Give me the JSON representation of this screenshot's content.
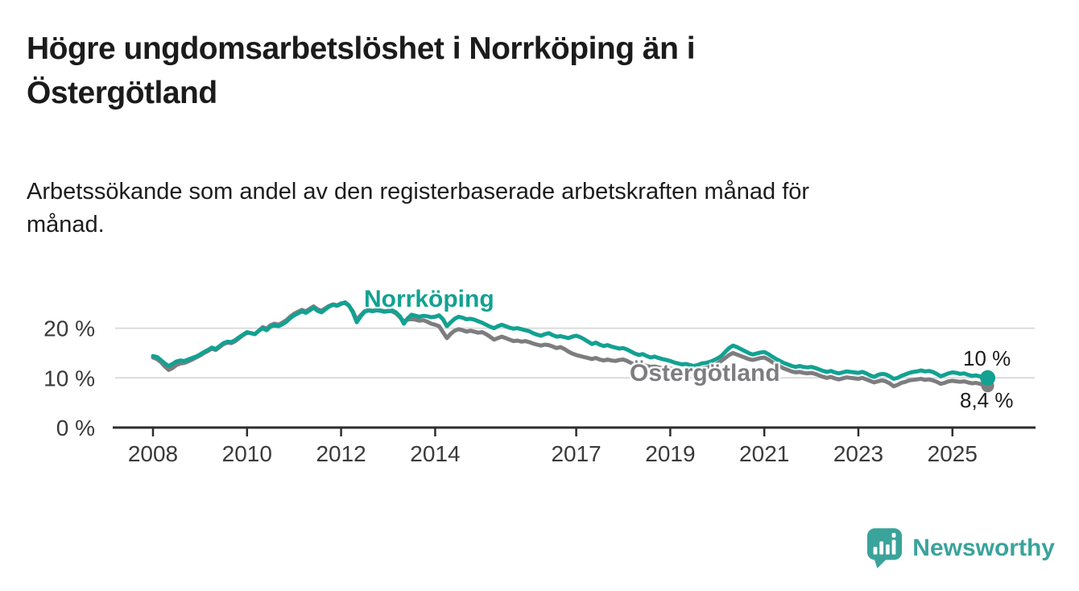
{
  "chart_data": {
    "type": "line",
    "title": "Högre ungdomsarbetslöshet i Norrköping än i Östergötland",
    "title_lines": [
      "Högre ungdomsarbetslöshet i Norrköping än i",
      "Östergötland"
    ],
    "subtitle": "Arbetssökande som andel av den registerbaserade arbetskraften månad för månad.",
    "subtitle_lines": [
      "Arbetssökande som andel av den registerbaserade arbetskraften månad för",
      "månad."
    ],
    "x_start_year": 2008,
    "points_per_year": 12,
    "x_tick_years": [
      2008,
      2010,
      2012,
      2014,
      2017,
      2019,
      2021,
      2023,
      2025
    ],
    "y_ticks": [
      0,
      10,
      20
    ],
    "y_tick_suffix": " %",
    "ylim": [
      0,
      26
    ],
    "grid": "horizontal",
    "legend_position": "inline-labels",
    "series": [
      {
        "name": "Norrköping",
        "slug": "norrkoping",
        "color": "#12a192",
        "end_label": "10 %",
        "end_value": 10.0,
        "values": [
          14.4,
          14.2,
          13.6,
          12.9,
          12.4,
          12.8,
          13.3,
          13.5,
          13.4,
          13.7,
          14.0,
          14.3,
          14.7,
          15.2,
          15.6,
          16.1,
          15.8,
          16.4,
          17.0,
          17.3,
          17.2,
          17.6,
          18.2,
          18.7,
          19.2,
          19.0,
          18.8,
          19.5,
          20.0,
          19.6,
          20.3,
          20.6,
          20.4,
          20.8,
          21.3,
          22.0,
          22.6,
          23.0,
          23.4,
          23.1,
          23.6,
          24.1,
          23.5,
          23.2,
          23.8,
          24.4,
          24.7,
          24.5,
          24.9,
          25.2,
          24.6,
          23.2,
          21.2,
          22.4,
          23.3,
          23.6,
          23.4,
          23.6,
          23.5,
          23.3,
          23.4,
          23.6,
          23.2,
          22.4,
          20.9,
          22.0,
          22.7,
          22.5,
          22.3,
          22.5,
          22.4,
          22.2,
          22.3,
          22.6,
          21.8,
          20.4,
          21.2,
          21.9,
          22.3,
          22.1,
          21.8,
          21.9,
          21.7,
          21.4,
          21.1,
          20.7,
          20.3,
          20.0,
          20.4,
          20.7,
          20.4,
          20.1,
          19.9,
          20.0,
          19.8,
          19.6,
          19.4,
          19.0,
          18.7,
          18.5,
          18.8,
          19.0,
          18.6,
          18.3,
          18.4,
          18.2,
          18.0,
          18.3,
          18.5,
          18.2,
          17.8,
          17.3,
          16.8,
          17.1,
          16.7,
          16.4,
          16.6,
          16.3,
          16.1,
          15.9,
          16.0,
          15.7,
          15.3,
          14.9,
          14.6,
          14.8,
          14.4,
          14.1,
          14.3,
          14.0,
          13.8,
          13.6,
          13.4,
          13.1,
          12.9,
          12.7,
          12.8,
          12.6,
          12.4,
          12.6,
          12.9,
          13.0,
          13.2,
          13.5,
          13.9,
          14.4,
          15.2,
          16.0,
          16.5,
          16.2,
          15.8,
          15.4,
          15.0,
          14.7,
          14.9,
          15.1,
          15.2,
          14.8,
          14.3,
          13.8,
          13.4,
          13.0,
          12.7,
          12.4,
          12.2,
          12.4,
          12.2,
          12.1,
          12.2,
          12.0,
          11.7,
          11.4,
          11.2,
          11.4,
          11.1,
          10.9,
          11.1,
          11.3,
          11.2,
          11.1,
          11.0,
          11.2,
          10.9,
          10.5,
          10.2,
          10.6,
          10.8,
          10.7,
          10.3,
          9.8,
          10.0,
          10.4,
          10.7,
          11.0,
          11.2,
          11.3,
          11.5,
          11.3,
          11.4,
          11.2,
          10.8,
          10.3,
          10.6,
          10.9,
          11.1,
          11.0,
          10.8,
          10.9,
          10.6,
          10.4,
          10.5,
          10.3,
          10.1,
          10.0
        ]
      },
      {
        "name": "Östergötland",
        "slug": "ostergotland",
        "color": "#7d7d80",
        "end_label": "8,4 %",
        "end_value": 8.4,
        "values": [
          14.1,
          13.8,
          13.2,
          12.3,
          11.6,
          12.0,
          12.6,
          12.9,
          13.0,
          13.3,
          13.7,
          14.1,
          14.5,
          15.0,
          15.4,
          15.9,
          15.6,
          16.2,
          16.8,
          17.1,
          17.0,
          17.4,
          18.0,
          18.6,
          19.1,
          19.0,
          18.8,
          19.5,
          20.2,
          19.9,
          20.6,
          20.9,
          20.7,
          21.1,
          21.6,
          22.3,
          22.9,
          23.3,
          23.7,
          23.4,
          23.9,
          24.4,
          23.8,
          23.5,
          24.0,
          24.5,
          24.8,
          24.6,
          25.0,
          25.1,
          24.5,
          23.4,
          21.6,
          22.6,
          23.4,
          23.7,
          23.5,
          23.7,
          23.6,
          23.4,
          23.5,
          23.4,
          23.0,
          22.2,
          21.4,
          21.7,
          21.9,
          21.7,
          21.5,
          21.6,
          21.3,
          20.9,
          20.7,
          20.4,
          19.2,
          18.0,
          18.9,
          19.5,
          19.8,
          19.6,
          19.3,
          19.5,
          19.3,
          19.1,
          19.2,
          18.8,
          18.3,
          17.7,
          18.0,
          18.3,
          18.0,
          17.7,
          17.4,
          17.5,
          17.3,
          17.4,
          17.2,
          16.9,
          16.7,
          16.5,
          16.7,
          16.6,
          16.3,
          16.0,
          16.2,
          15.8,
          15.3,
          14.9,
          14.6,
          14.4,
          14.2,
          14.0,
          13.8,
          14.0,
          13.7,
          13.5,
          13.7,
          13.5,
          13.4,
          13.6,
          13.7,
          13.4,
          13.0,
          12.7,
          12.5,
          12.7,
          12.4,
          12.2,
          12.3,
          12.1,
          11.9,
          11.8,
          11.9,
          11.7,
          11.5,
          11.4,
          11.5,
          11.7,
          11.5,
          11.7,
          11.9,
          12.0,
          12.2,
          12.5,
          12.9,
          13.4,
          14.0,
          14.6,
          15.0,
          14.7,
          14.4,
          14.1,
          13.8,
          13.6,
          13.8,
          14.0,
          14.1,
          13.7,
          13.2,
          12.7,
          12.3,
          11.9,
          11.6,
          11.3,
          11.1,
          11.2,
          11.0,
          10.9,
          11.0,
          10.8,
          10.5,
          10.2,
          10.0,
          10.2,
          9.9,
          9.7,
          9.9,
          10.1,
          10.0,
          9.9,
          9.8,
          10.0,
          9.7,
          9.4,
          9.1,
          9.3,
          9.5,
          9.3,
          8.9,
          8.3,
          8.6,
          9.0,
          9.2,
          9.5,
          9.6,
          9.7,
          9.8,
          9.6,
          9.7,
          9.5,
          9.2,
          8.8,
          9.0,
          9.3,
          9.4,
          9.3,
          9.2,
          9.3,
          9.1,
          8.9,
          9.0,
          8.8,
          8.6,
          8.4
        ]
      }
    ],
    "colors": {
      "axis": "#2e2e2e",
      "gridline": "#dbdbdb",
      "tick_label": "#3a3a3a",
      "text": "#1b1b1b"
    }
  },
  "branding": {
    "logo_text": "Newsworthy",
    "logo_color": "#3aa39b",
    "logo_icon": "speech-bubble-bar-chart-icon"
  }
}
